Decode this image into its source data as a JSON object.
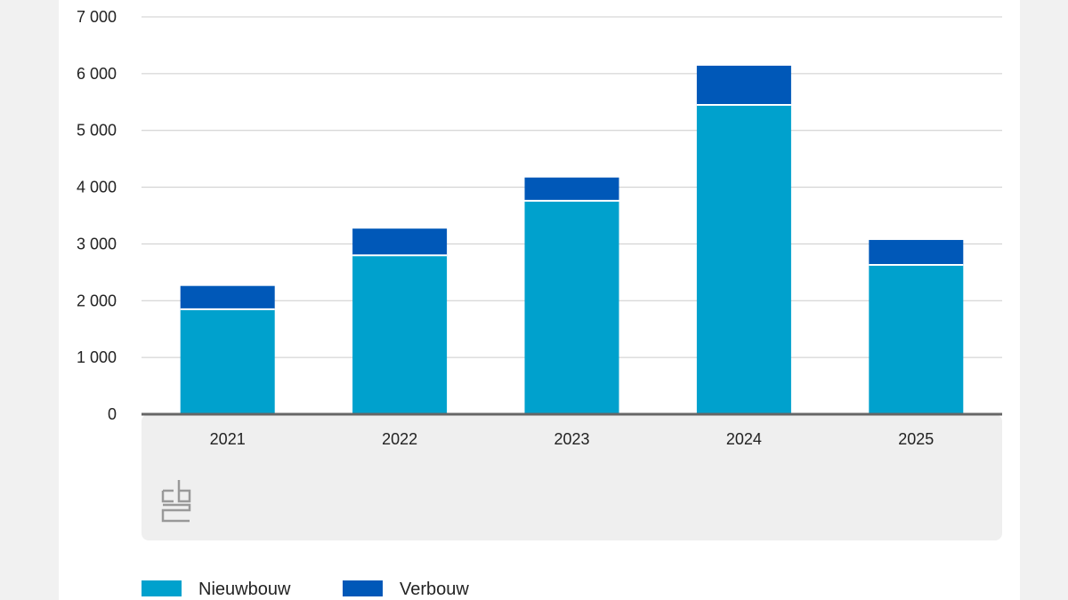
{
  "chart_data": {
    "type": "bar",
    "stacked": true,
    "categories": [
      "2021",
      "2022",
      "2023",
      "2024",
      "2025"
    ],
    "series": [
      {
        "name": "Nieuwbouw",
        "color": "#00a1cd",
        "values": [
          1850,
          2800,
          3760,
          5450,
          2630
        ]
      },
      {
        "name": "Verbouw",
        "color": "#0058b8",
        "values": [
          410,
          470,
          410,
          690,
          440
        ]
      }
    ],
    "ylim": [
      0,
      7000
    ],
    "yticks": [
      0,
      1000,
      2000,
      3000,
      4000,
      5000,
      6000,
      7000
    ],
    "ytick_labels": [
      "0",
      "1 000",
      "2 000",
      "3 000",
      "4 000",
      "5 000",
      "6 000",
      "7 000"
    ],
    "grid": true,
    "legend_position": "bottom-left",
    "logo": "cbs-logo"
  }
}
